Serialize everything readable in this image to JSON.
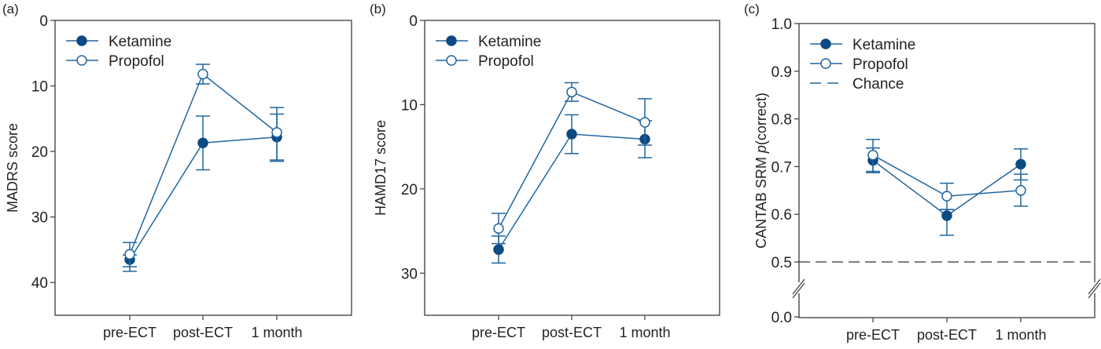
{
  "colors": {
    "line": "#2166a0",
    "ketamine_fill": "#0d4a82",
    "axis": "#3a3a3a",
    "chance": "#333333"
  },
  "chart_data": [
    {
      "type": "line",
      "panel_label": "(a)",
      "ylabel": "MADRS score",
      "ylim": [
        0,
        45
      ],
      "y_inverted": true,
      "yticks": [
        0,
        10,
        20,
        30,
        40
      ],
      "categories": [
        "pre-ECT",
        "post-ECT",
        "1 month"
      ],
      "legend": [
        "Ketamine",
        "Propofol"
      ],
      "legend_position": "top-left",
      "series": [
        {
          "name": "Ketamine",
          "marker": "filled",
          "values": [
            36.5,
            18.7,
            17.8
          ],
          "err_low": [
            35.8,
            14.6,
            14.3
          ],
          "err_high": [
            38.3,
            22.8,
            21.3
          ]
        },
        {
          "name": "Propofol",
          "marker": "open",
          "values": [
            35.7,
            8.2,
            17.1
          ],
          "err_low": [
            33.9,
            6.7,
            13.3
          ],
          "err_high": [
            37.6,
            9.7,
            21.5
          ]
        }
      ]
    },
    {
      "type": "line",
      "panel_label": "(b)",
      "ylabel": "HAMD17 score",
      "ylim": [
        0,
        35
      ],
      "y_inverted": true,
      "yticks": [
        0,
        10,
        20,
        30
      ],
      "categories": [
        "pre-ECT",
        "post-ECT",
        "1 month"
      ],
      "legend": [
        "Ketamine",
        "Propofol"
      ],
      "legend_position": "top-left",
      "series": [
        {
          "name": "Ketamine",
          "marker": "filled",
          "values": [
            27.2,
            13.5,
            14.1
          ],
          "err_low": [
            25.6,
            11.2,
            11.9
          ],
          "err_high": [
            28.8,
            15.8,
            16.3
          ]
        },
        {
          "name": "Propofol",
          "marker": "open",
          "values": [
            24.7,
            8.5,
            12.1
          ],
          "err_low": [
            22.9,
            7.4,
            9.3
          ],
          "err_high": [
            26.5,
            9.6,
            14.8
          ]
        }
      ]
    },
    {
      "type": "line",
      "panel_label": "(c)",
      "ylabel": "CANTAB SRM p(correct)",
      "ylabel_parts": [
        "CANTAB SRM ",
        "p",
        "(correct)"
      ],
      "ylim": [
        0.0,
        1.0
      ],
      "y_axis_break": [
        0.0,
        0.5
      ],
      "yticks": [
        0.0,
        0.5,
        0.6,
        0.7,
        0.8,
        0.9,
        1.0
      ],
      "ytick_labels": [
        "0.0",
        "0.5",
        "0.6",
        "0.7",
        "0.8",
        "0.9",
        "1.0"
      ],
      "categories": [
        "pre-ECT",
        "post-ECT",
        "1 month"
      ],
      "legend": [
        "Ketamine",
        "Propofol",
        "Chance"
      ],
      "legend_position": "top-left",
      "chance_level": 0.5,
      "series": [
        {
          "name": "Ketamine",
          "marker": "filled",
          "values": [
            0.713,
            0.597,
            0.705
          ],
          "err_low": [
            0.687,
            0.556,
            0.672
          ],
          "err_high": [
            0.739,
            0.61,
            0.737
          ]
        },
        {
          "name": "Propofol",
          "marker": "open",
          "values": [
            0.724,
            0.638,
            0.65
          ],
          "err_low": [
            0.69,
            0.61,
            0.617
          ],
          "err_high": [
            0.757,
            0.665,
            0.684
          ]
        }
      ]
    }
  ]
}
